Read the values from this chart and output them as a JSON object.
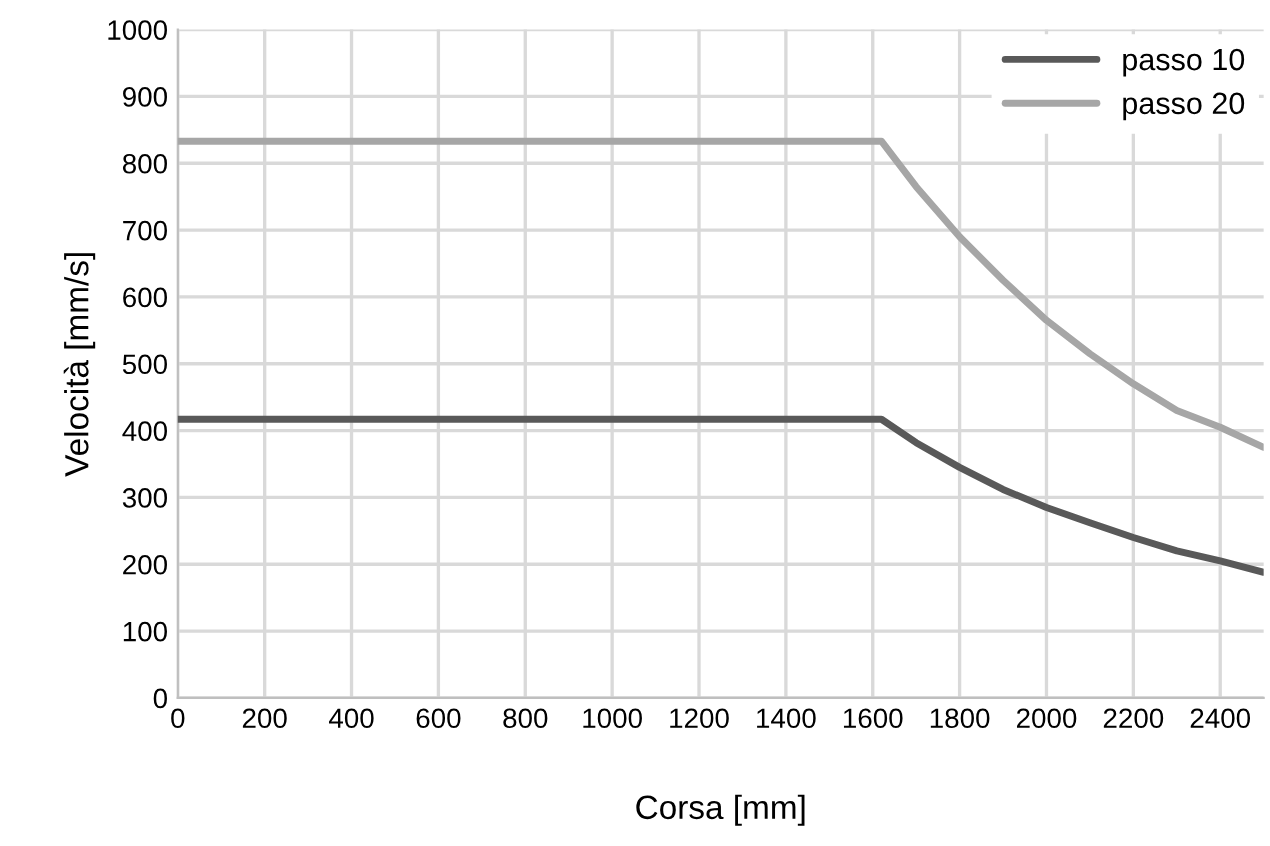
{
  "chart_data": {
    "type": "line",
    "xlabel": "Corsa [mm]",
    "ylabel": "Velocità [mm/s]",
    "x": [
      0,
      1620,
      1700,
      1800,
      1900,
      2000,
      2100,
      2200,
      2300,
      2400,
      2500
    ],
    "series": [
      {
        "name": "passo 10",
        "color": "#595959",
        "values": [
          417,
          417,
          382,
          345,
          312,
          285,
          262,
          240,
          220,
          205,
          188
        ]
      },
      {
        "name": "passo 20",
        "color": "#a6a6a6",
        "values": [
          833,
          833,
          765,
          690,
          625,
          565,
          515,
          470,
          430,
          405,
          375
        ]
      }
    ],
    "xlim": [
      0,
      2500
    ],
    "xticks": [
      0,
      200,
      400,
      600,
      800,
      1000,
      1200,
      1400,
      1600,
      1800,
      2000,
      2200,
      2400
    ],
    "ylim": [
      0,
      1000
    ],
    "yticks": [
      0,
      100,
      200,
      300,
      400,
      500,
      600,
      700,
      800,
      900,
      1000
    ],
    "grid": true,
    "legend": "top right",
    "marker": "none",
    "line_style": "solid"
  }
}
